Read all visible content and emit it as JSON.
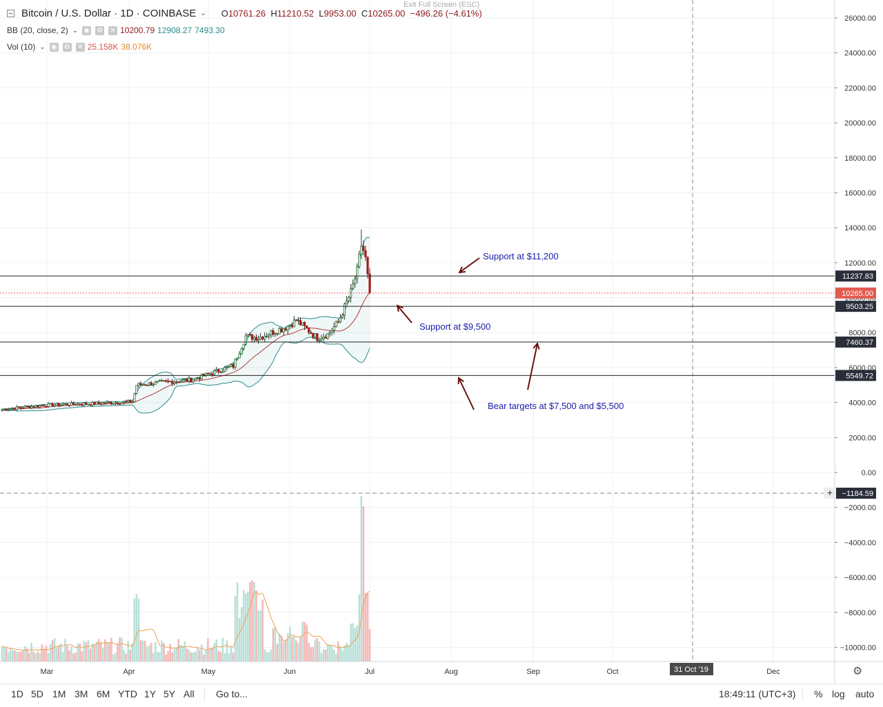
{
  "header": {
    "symbol_title": "Bitcoin / U.S. Dollar · 1D · COINBASE",
    "ohlc": {
      "open_label": "O",
      "open": "10761.26",
      "high_label": "H",
      "high": "11210.52",
      "low_label": "L",
      "low": "9953.00",
      "close_label": "C",
      "close": "10265.00",
      "change": "−496.26 (−4.61%)"
    },
    "bb": {
      "label": "BB (20, close, 2)",
      "mid": "10200.79",
      "upper": "12908.27",
      "lower": "7493.30"
    },
    "vol": {
      "label": "Vol (10)",
      "vol": "25.158K",
      "vol_ma": "38.076K"
    },
    "exit_fullscreen": "Exit Full Screen (ESC)"
  },
  "chart_data": {
    "type": "candlestick",
    "price_axis": {
      "min": -11000,
      "max": 27000,
      "ticks": [
        "26000.00",
        "24000.00",
        "22000.00",
        "20000.00",
        "18000.00",
        "16000.00",
        "14000.00",
        "12000.00",
        "10000.00",
        "8000.00",
        "6000.00",
        "4000.00",
        "2000.00",
        "0.00",
        "−2000.00",
        "−4000.00",
        "−6000.00",
        "−8000.00",
        "−10000.00"
      ]
    },
    "time_axis": {
      "ticks": [
        "Mar",
        "Apr",
        "May",
        "Jun",
        "Jul",
        "Aug",
        "Sep",
        "Oct",
        "Dec"
      ],
      "highlight": "31 Oct '19"
    },
    "price_labels": [
      {
        "value": 11237.83,
        "text": "11237.83",
        "style": "dark"
      },
      {
        "value": 10265.0,
        "text": "10265.00",
        "style": "red"
      },
      {
        "value": 9503.25,
        "text": "9503.25",
        "style": "dark"
      },
      {
        "value": 7460.37,
        "text": "7460.37",
        "style": "dark"
      },
      {
        "value": 5549.72,
        "text": "5549.72",
        "style": "dark"
      },
      {
        "value": -1184.59,
        "text": "−1184.59",
        "style": "dark"
      }
    ],
    "horizontal_lines": [
      11237.83,
      9503.25,
      7460.37,
      5549.72
    ],
    "last_price": 10265.0,
    "crosshair_value": -1184.59,
    "annotations": [
      {
        "text": "Support at $11,200"
      },
      {
        "text": "Support at $9,500"
      },
      {
        "text": "Bear targets at $7,500 and $5,500"
      }
    ],
    "colors": {
      "up": "#26a69a",
      "down": "#ef5350",
      "bb": "#2a8a8a",
      "bb_mid": "#b03a3a",
      "annotation": "#1a1aaa",
      "arrow": "#6b0f0f"
    }
  },
  "bottom_bar": {
    "timeframes": [
      "1D",
      "5D",
      "1M",
      "3M",
      "6M",
      "YTD",
      "1Y",
      "5Y",
      "All"
    ],
    "goto": "Go to...",
    "clock": "18:49:11 (UTC+3)",
    "percent": "%",
    "log": "log",
    "auto": "auto"
  }
}
